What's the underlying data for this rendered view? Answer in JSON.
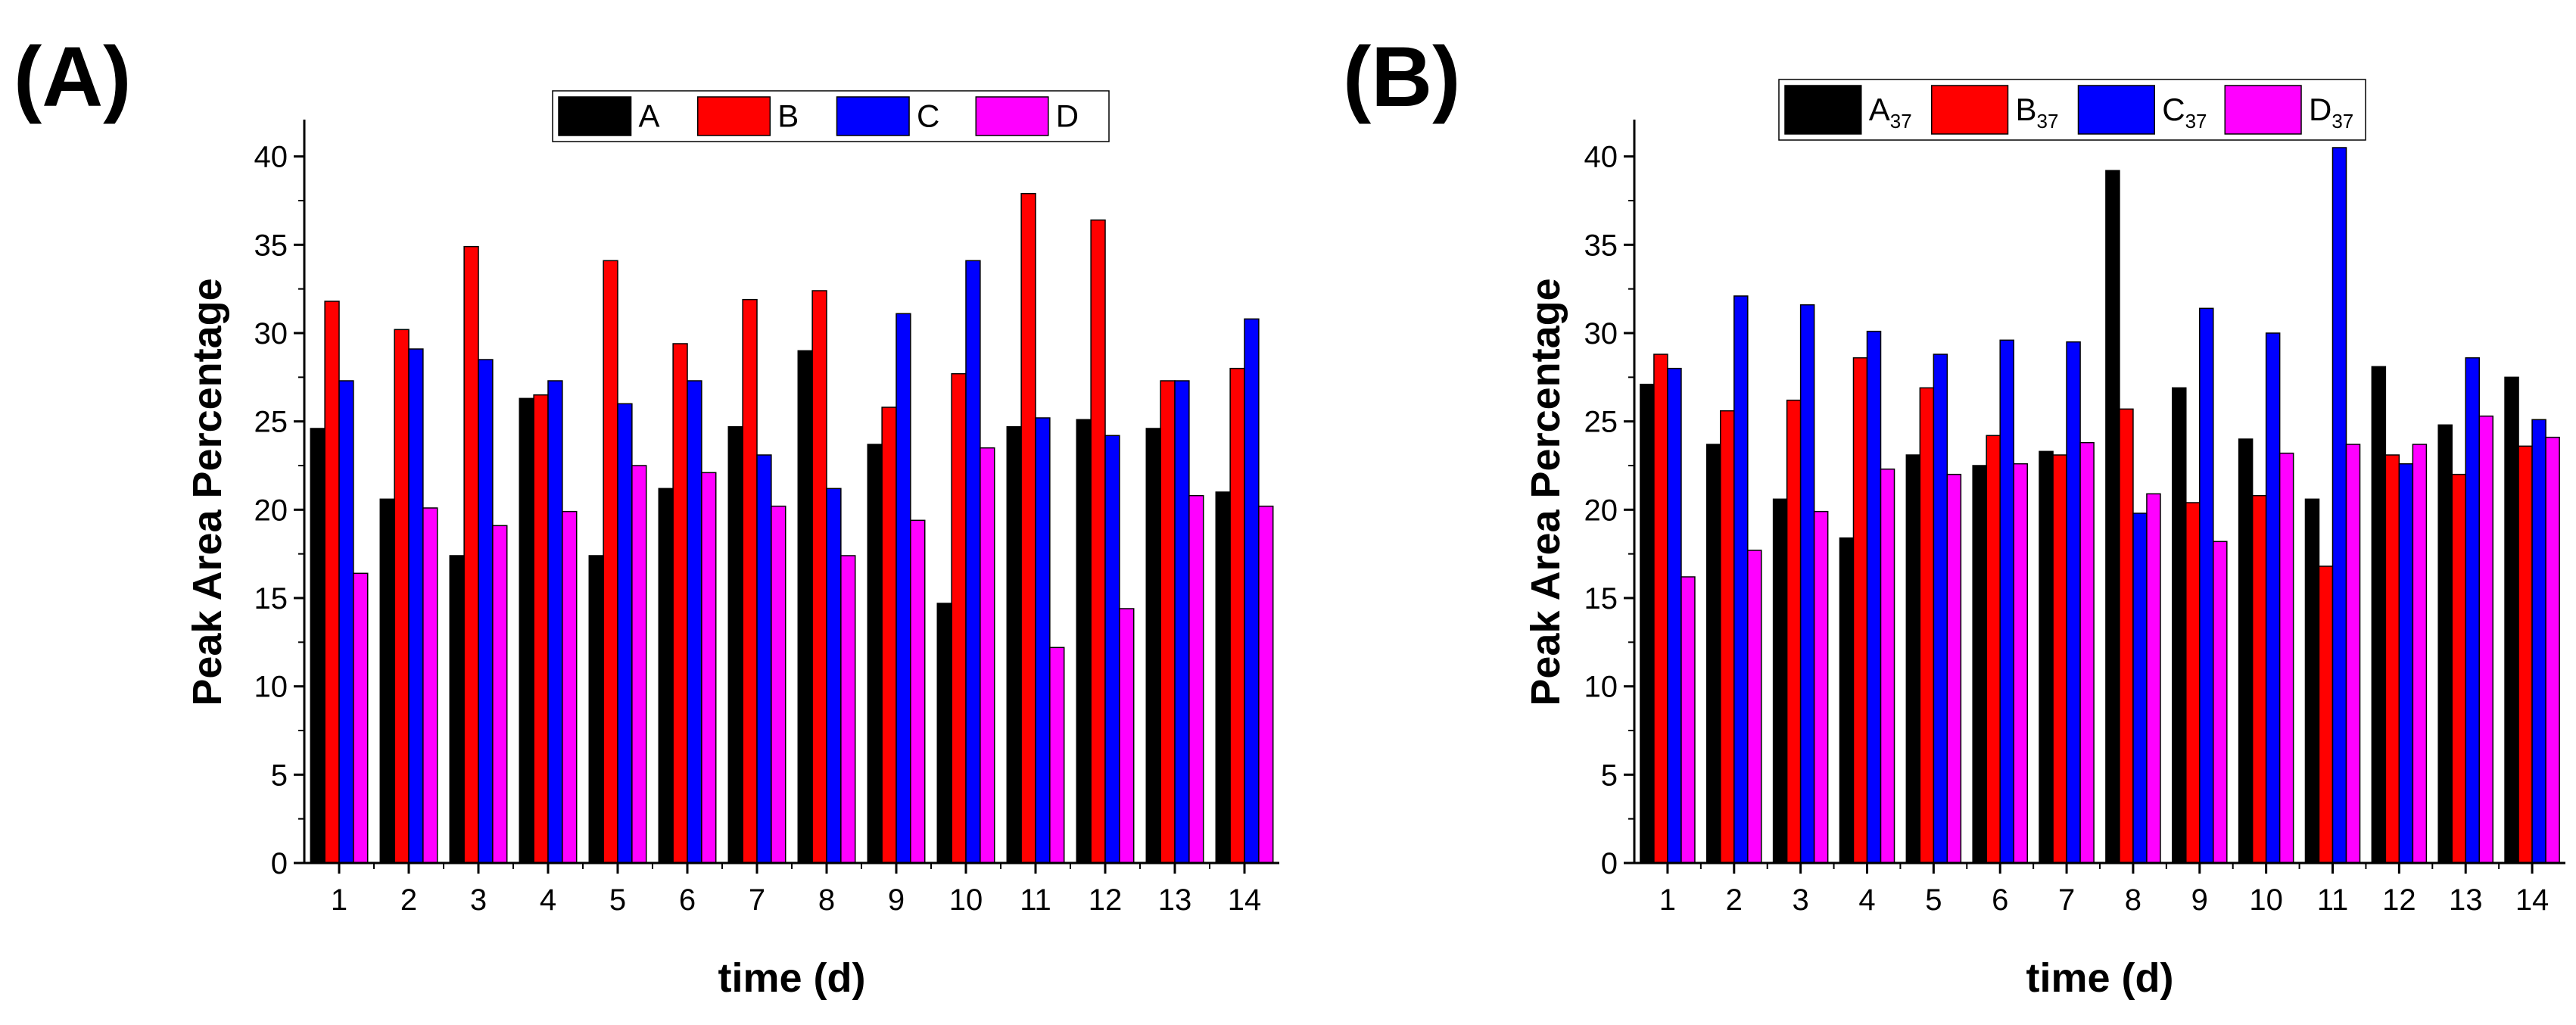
{
  "chart_data": [
    {
      "panel_label": "(A)",
      "type": "bar",
      "xlabel": "time (d)",
      "ylabel": "Peak Area Percentage",
      "ylim": [
        0,
        42
      ],
      "yticks": [
        0,
        5,
        10,
        15,
        20,
        25,
        30,
        35,
        40
      ],
      "categories": [
        "1",
        "2",
        "3",
        "4",
        "5",
        "6",
        "7",
        "8",
        "9",
        "10",
        "11",
        "12",
        "13",
        "14"
      ],
      "legend_position": "top",
      "series": [
        {
          "name": "A",
          "sub": "",
          "color": "#000000",
          "values": [
            24.6,
            20.6,
            17.4,
            26.3,
            17.4,
            21.2,
            24.7,
            29.0,
            23.7,
            14.7,
            24.7,
            25.1,
            24.6,
            21.0
          ]
        },
        {
          "name": "B",
          "sub": "",
          "color": "#ff0000",
          "values": [
            31.8,
            30.2,
            34.9,
            26.5,
            34.1,
            29.4,
            31.9,
            32.4,
            25.8,
            27.7,
            37.9,
            36.4,
            27.3,
            28.0
          ]
        },
        {
          "name": "C",
          "sub": "",
          "color": "#0000ff",
          "values": [
            27.3,
            29.1,
            28.5,
            27.3,
            26.0,
            27.3,
            23.1,
            21.2,
            31.1,
            34.1,
            25.2,
            24.2,
            27.3,
            30.8
          ]
        },
        {
          "name": "D",
          "sub": "",
          "color": "#ff00ff",
          "values": [
            16.4,
            20.1,
            19.1,
            19.9,
            22.5,
            22.1,
            20.2,
            17.4,
            19.4,
            23.5,
            12.2,
            14.4,
            20.8,
            20.2
          ]
        }
      ]
    },
    {
      "panel_label": "(B)",
      "type": "bar",
      "xlabel": "time (d)",
      "ylabel": "Peak Area Percentage",
      "ylim": [
        0,
        42
      ],
      "yticks": [
        0,
        5,
        10,
        15,
        20,
        25,
        30,
        35,
        40
      ],
      "categories": [
        "1",
        "2",
        "3",
        "4",
        "5",
        "6",
        "7",
        "8",
        "9",
        "10",
        "11",
        "12",
        "13",
        "14"
      ],
      "legend_position": "top",
      "series": [
        {
          "name": "A",
          "sub": "37",
          "color": "#000000",
          "values": [
            27.1,
            23.7,
            20.6,
            18.4,
            23.1,
            22.5,
            23.3,
            39.2,
            26.9,
            24.0,
            20.6,
            28.1,
            24.8,
            27.5
          ]
        },
        {
          "name": "B",
          "sub": "37",
          "color": "#ff0000",
          "values": [
            28.8,
            25.6,
            26.2,
            28.6,
            26.9,
            24.2,
            23.1,
            25.7,
            20.4,
            20.8,
            16.8,
            23.1,
            22.0,
            23.6
          ]
        },
        {
          "name": "C",
          "sub": "37",
          "color": "#0000ff",
          "values": [
            28.0,
            32.1,
            31.6,
            30.1,
            28.8,
            29.6,
            29.5,
            19.8,
            31.4,
            30.0,
            40.5,
            22.6,
            28.6,
            25.1
          ]
        },
        {
          "name": "D",
          "sub": "37",
          "color": "#ff00ff",
          "values": [
            16.2,
            17.7,
            19.9,
            22.3,
            22.0,
            22.6,
            23.8,
            20.9,
            18.2,
            23.2,
            23.7,
            23.7,
            25.3,
            24.1
          ]
        }
      ]
    }
  ]
}
